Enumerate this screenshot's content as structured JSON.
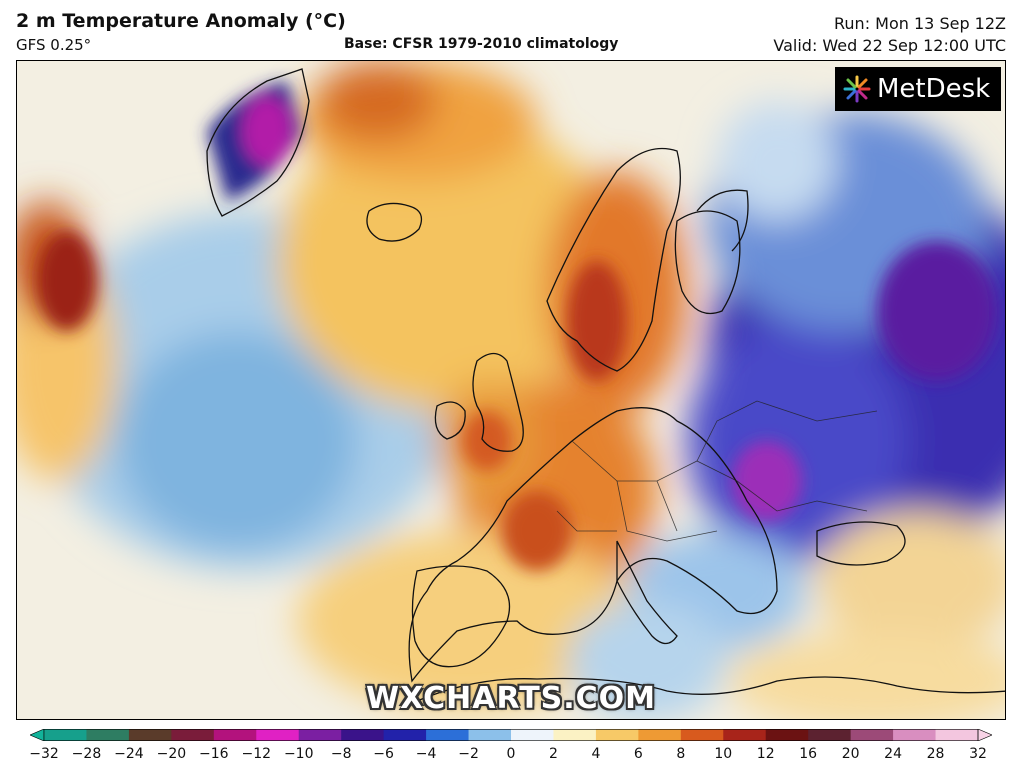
{
  "header": {
    "title": "2 m Temperature Anomaly (°C)",
    "model": "GFS 0.25°",
    "base": "Base: CFSR 1979-2010 climatology",
    "run": "Run: Mon 13 Sep 12Z",
    "valid": "Valid: Wed 22 Sep 12:00 UTC"
  },
  "logo": {
    "text": "MetDesk"
  },
  "watermark": "WXCHARTS.COM",
  "colorbar": {
    "ticks": [
      "−32",
      "−28",
      "−24",
      "−20",
      "−16",
      "−12",
      "−10",
      "−8",
      "−6",
      "−4",
      "−2",
      "0",
      "2",
      "4",
      "6",
      "8",
      "10",
      "12",
      "16",
      "20",
      "24",
      "28",
      "32"
    ],
    "colors": [
      "#16a08c",
      "#2e7d62",
      "#5a3b2a",
      "#7a1c3a",
      "#b3127d",
      "#e021c4",
      "#7b1fa2",
      "#3a138a",
      "#2222aa",
      "#2c6fd8",
      "#8cc0ea",
      "#eef4fb",
      "#fbf2c4",
      "#f7c967",
      "#ee9a34",
      "#d85a1e",
      "#a8241a",
      "#6b1212",
      "#5c2230",
      "#9c4a78",
      "#d98ec0",
      "#f3c6df"
    ]
  },
  "map": {
    "description_colors": {
      "warm": "#e8892c",
      "cold": "#2a2a9a",
      "neutral": "#f4f1e6"
    }
  }
}
